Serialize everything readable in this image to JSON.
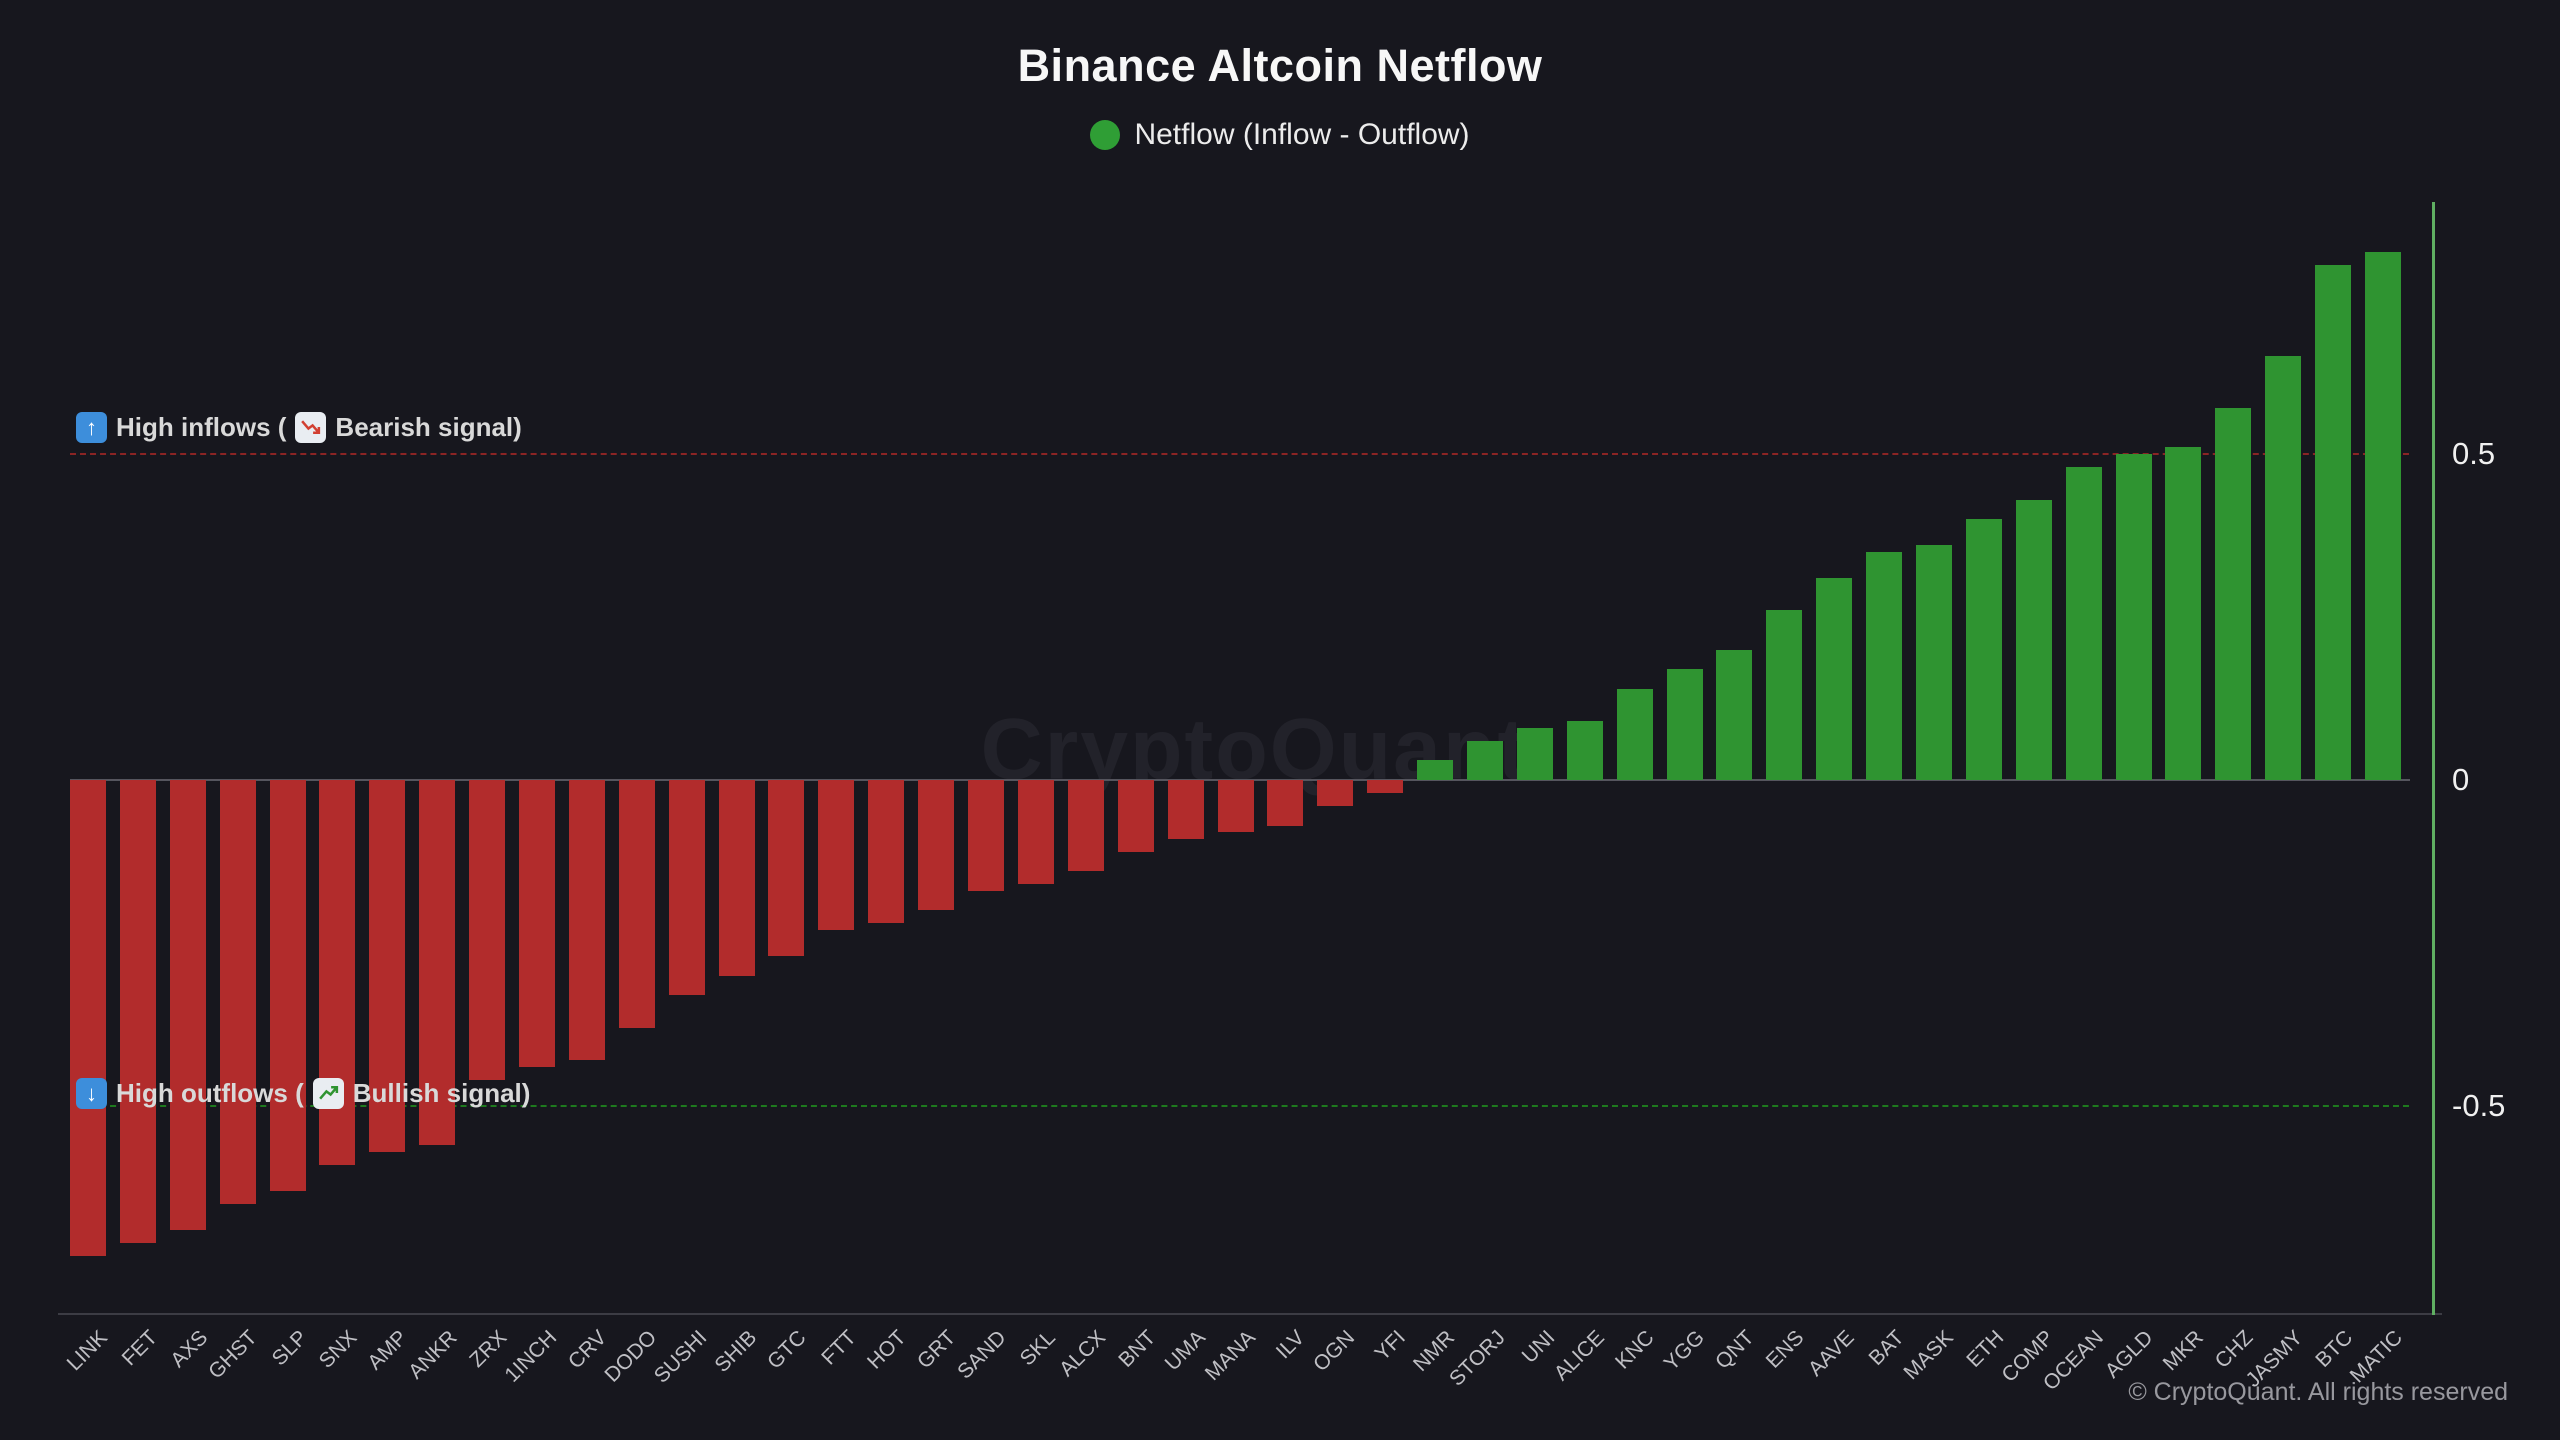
{
  "header": {
    "title": "Binance Altcoin Netflow",
    "legend_label": "Netflow (Inflow - Outflow)",
    "legend_color": "#2f9e35"
  },
  "watermark": "CryptoQuant",
  "annotations": {
    "inflow": {
      "arrow": "↑",
      "label_open": "High inflows (",
      "label_close": "Bearish signal)",
      "y": 0.5
    },
    "outflow": {
      "arrow": "↓",
      "label_open": "High outflows (",
      "label_close": "Bullish signal)",
      "y": -0.5
    }
  },
  "chart_data": {
    "type": "bar",
    "title": "Binance Altcoin Netflow",
    "legend": [
      "Netflow (Inflow - Outflow)"
    ],
    "legend_position": "top-center",
    "grid": false,
    "categories": [
      "LINK",
      "FET",
      "AXS",
      "GHST",
      "SLP",
      "SNX",
      "AMP",
      "ANKR",
      "ZRX",
      "1INCH",
      "CRV",
      "DODO",
      "SUSHI",
      "SHIB",
      "GTC",
      "FTT",
      "HOT",
      "GRT",
      "SAND",
      "SKL",
      "ALCX",
      "BNT",
      "UMA",
      "MANA",
      "ILV",
      "OGN",
      "YFI",
      "NMR",
      "STORJ",
      "UNI",
      "ALICE",
      "KNC",
      "YGG",
      "QNT",
      "ENS",
      "AAVE",
      "BAT",
      "MASK",
      "ETH",
      "COMP",
      "OCEAN",
      "AGLD",
      "MKR",
      "CHZ",
      "JASMY",
      "BTC",
      "MATIC"
    ],
    "values": [
      -0.73,
      -0.71,
      -0.69,
      -0.65,
      -0.63,
      -0.59,
      -0.57,
      -0.56,
      -0.46,
      -0.44,
      -0.43,
      -0.38,
      -0.33,
      -0.3,
      -0.27,
      -0.23,
      -0.22,
      -0.2,
      -0.17,
      -0.16,
      -0.14,
      -0.11,
      -0.09,
      -0.08,
      -0.07,
      -0.04,
      -0.02,
      0.03,
      0.06,
      0.08,
      0.09,
      0.14,
      0.17,
      0.2,
      0.26,
      0.31,
      0.35,
      0.36,
      0.4,
      0.43,
      0.48,
      0.5,
      0.51,
      0.57,
      0.65,
      0.79,
      0.81
    ],
    "xlabel": "",
    "ylabel": "",
    "ylim": [
      -0.82,
      0.88
    ],
    "yticks": [
      {
        "label": "0.5",
        "value": 0.5
      },
      {
        "label": "0",
        "value": 0
      },
      {
        "label": "-0.5",
        "value": -0.5
      }
    ],
    "hlines": [
      {
        "name": "high-inflows-threshold",
        "y": 0.5,
        "color": "#8b2424",
        "style": "dashed"
      },
      {
        "name": "high-outflows-threshold",
        "y": -0.5,
        "color": "#1e7a1e",
        "style": "dashed"
      }
    ],
    "positive_color": "#2f9431",
    "negative_color": "#b22c2c"
  },
  "footer": {
    "copyright": "© CryptoQuant. All rights reserved"
  }
}
